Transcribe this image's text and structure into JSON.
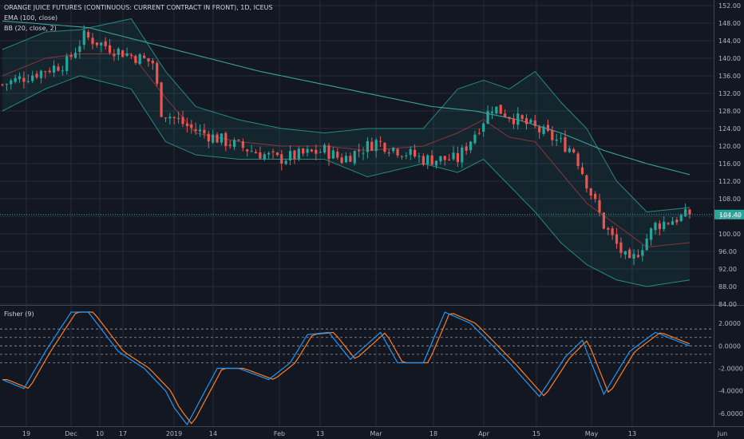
{
  "chart_data": [
    {
      "type": "candlestick",
      "title": "ORANGE JUICE FUTURES (CONTINUOUS: CURRENT CONTRACT IN FRONT), 1D, ICEUS",
      "indicators": [
        "EMA (100, close)",
        "BB (20, close, 2)"
      ],
      "last_price_label": "104.40",
      "last_price": 104.4,
      "ylim": [
        84,
        152
      ],
      "y_ticks": [
        "84.00",
        "88.00",
        "92.00",
        "96.00",
        "100.00",
        "104.00",
        "108.00",
        "112.00",
        "116.00",
        "120.00",
        "124.00",
        "128.00",
        "132.00",
        "136.00",
        "140.00",
        "144.00",
        "148.00",
        "152.00"
      ],
      "x_ticks": [
        "19",
        "Dec",
        "10",
        "17",
        "2019",
        "14",
        "Feb",
        "13",
        "Mar",
        "18",
        "Apr",
        "15",
        "May",
        "13",
        "Jun"
      ],
      "anchors_x": [
        0,
        15,
        19,
        26,
        35,
        37,
        44,
        52,
        64,
        75,
        79,
        87,
        98,
        106,
        114,
        126,
        133,
        140,
        146,
        152,
        160
      ],
      "anchors_close": [
        134,
        139,
        145,
        142,
        139,
        128,
        124,
        121,
        117,
        119,
        117,
        121,
        117,
        117,
        129,
        123,
        119,
        102,
        93,
        102,
        104.4
      ],
      "ema_anchors_x": [
        0,
        20,
        40,
        60,
        80,
        100,
        110,
        120,
        130,
        140,
        150,
        160
      ],
      "ema_anchors": [
        148.5,
        147,
        142,
        137,
        133,
        129,
        128,
        126,
        123,
        119,
        116,
        113.5
      ],
      "bb_anchors_x": [
        0,
        10,
        18,
        30,
        38,
        45,
        55,
        65,
        75,
        85,
        98,
        106,
        112,
        118,
        124,
        130,
        136,
        143,
        150,
        160
      ],
      "bb_upper": [
        142,
        146,
        146.5,
        149,
        137,
        129,
        126,
        124,
        123,
        124,
        124,
        133,
        135,
        133,
        137,
        130,
        124,
        112,
        105,
        106
      ],
      "bb_lower": [
        128,
        133,
        136,
        133,
        121,
        118,
        117,
        117,
        117,
        113,
        116,
        114,
        117,
        111,
        105,
        98,
        93,
        89.5,
        88,
        89.5
      ],
      "bb_basis": [
        136,
        140,
        141,
        141,
        131,
        123,
        121,
        120,
        120,
        119,
        120,
        123,
        126,
        122,
        121,
        114,
        107,
        102,
        97,
        98
      ]
    },
    {
      "type": "line",
      "title": "Fisher (9)",
      "ylim": [
        -7,
        3.5
      ],
      "y_ticks": [
        "2.0000",
        "0.0000",
        "-2.0000",
        "-4.0000",
        "-6.0000"
      ],
      "levels": [
        1.5,
        0.75,
        0,
        -0.75,
        -1.5
      ],
      "anchors_x": [
        0,
        5,
        10,
        16,
        20,
        27,
        33,
        38,
        40,
        43,
        50,
        55,
        62,
        67,
        71,
        76,
        81,
        88,
        92,
        98,
        103,
        109,
        118,
        125,
        131,
        135,
        140,
        146,
        152,
        160
      ],
      "fisher": [
        -3,
        -3.8,
        -0.5,
        3,
        3,
        -0.5,
        -2,
        -4,
        -5.5,
        -7,
        -2,
        -2,
        -3,
        -1.5,
        1,
        1.2,
        -1.2,
        1.2,
        -1.5,
        -1.5,
        3,
        2,
        -1.5,
        -4.5,
        -1,
        0.5,
        -4.3,
        -0.5,
        1.2,
        0
      ]
    }
  ]
}
